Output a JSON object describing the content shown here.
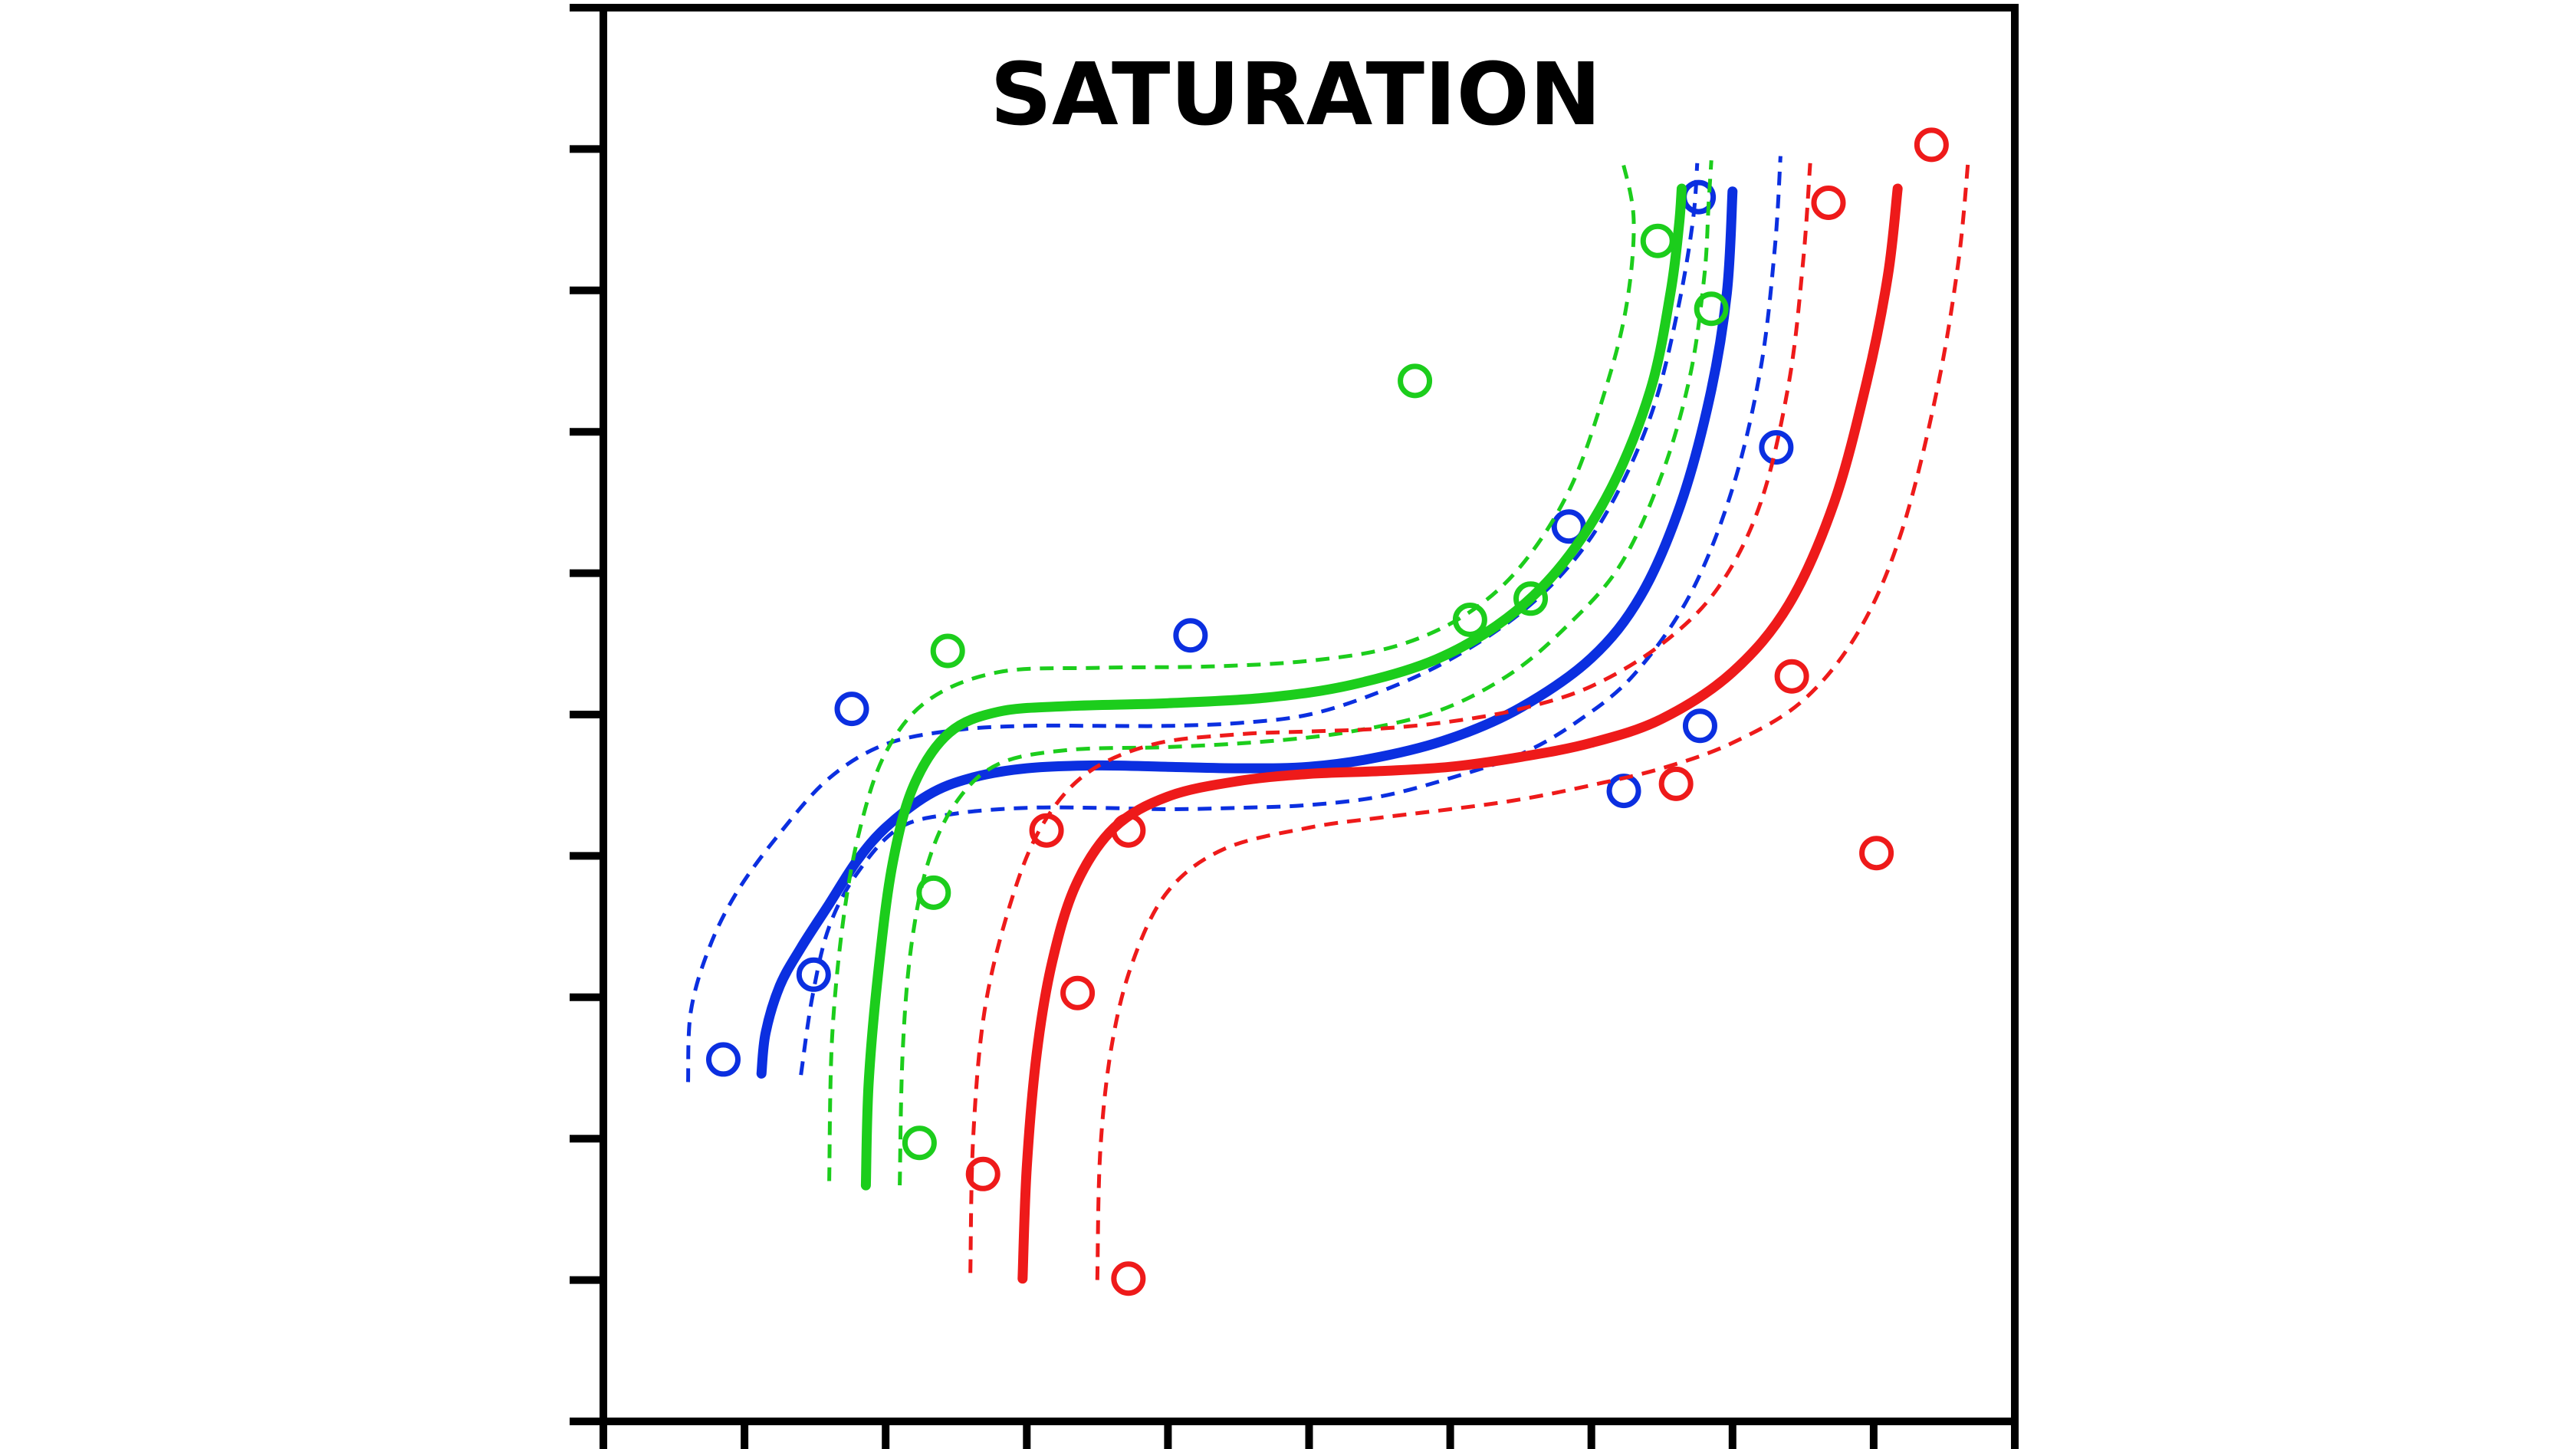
{
  "chart_data": {
    "type": "scatter",
    "title": "SATURATION",
    "xlabel": "",
    "ylabel": "",
    "xlim": [
      0,
      10
    ],
    "ylim": [
      0,
      10
    ],
    "x_tick_count": 11,
    "y_tick_count": 11,
    "x_tick_labels": [],
    "y_tick_labels": [],
    "grid": false,
    "legend": "none",
    "series": [
      {
        "color": "#0b2fe0",
        "points": [
          [
            0.85,
            2.56
          ],
          [
            1.49,
            3.16
          ],
          [
            1.76,
            5.04
          ],
          [
            4.16,
            5.56
          ],
          [
            6.84,
            6.33
          ],
          [
            7.23,
            4.46
          ],
          [
            7.77,
            4.92
          ],
          [
            7.76,
            8.66
          ],
          [
            8.31,
            6.89
          ]
        ],
        "fit": [
          [
            1.12,
            2.46
          ],
          [
            1.15,
            2.75
          ],
          [
            1.25,
            3.08
          ],
          [
            1.4,
            3.35
          ],
          [
            1.6,
            3.66
          ],
          [
            1.8,
            3.97
          ],
          [
            2.0,
            4.2
          ],
          [
            2.3,
            4.43
          ],
          [
            2.6,
            4.55
          ],
          [
            3.0,
            4.62
          ],
          [
            3.5,
            4.64
          ],
          [
            4.0,
            4.63
          ],
          [
            4.5,
            4.62
          ],
          [
            5.0,
            4.63
          ],
          [
            5.5,
            4.7
          ],
          [
            6.0,
            4.83
          ],
          [
            6.5,
            5.05
          ],
          [
            7.0,
            5.4
          ],
          [
            7.35,
            5.84
          ],
          [
            7.63,
            6.48
          ],
          [
            7.84,
            7.25
          ],
          [
            7.96,
            7.98
          ],
          [
            8.0,
            8.7
          ]
        ],
        "ci_upper": [
          [
            0.6,
            2.4
          ],
          [
            0.62,
            2.9
          ],
          [
            0.75,
            3.35
          ],
          [
            0.95,
            3.75
          ],
          [
            1.25,
            4.16
          ],
          [
            1.6,
            4.55
          ],
          [
            2.0,
            4.79
          ],
          [
            2.5,
            4.89
          ],
          [
            3.0,
            4.92
          ],
          [
            3.5,
            4.92
          ],
          [
            4.0,
            4.92
          ],
          [
            4.5,
            4.94
          ],
          [
            5.0,
            5.0
          ],
          [
            5.5,
            5.16
          ],
          [
            6.0,
            5.39
          ],
          [
            6.5,
            5.72
          ],
          [
            6.9,
            6.12
          ],
          [
            7.2,
            6.6
          ],
          [
            7.45,
            7.2
          ],
          [
            7.62,
            7.9
          ],
          [
            7.72,
            8.5
          ],
          [
            7.75,
            8.9
          ]
        ],
        "ci_lower": [
          [
            1.4,
            2.45
          ],
          [
            1.48,
            3.0
          ],
          [
            1.6,
            3.5
          ],
          [
            1.8,
            3.88
          ],
          [
            2.1,
            4.2
          ],
          [
            2.5,
            4.3
          ],
          [
            3.0,
            4.34
          ],
          [
            3.5,
            4.34
          ],
          [
            4.0,
            4.33
          ],
          [
            4.5,
            4.34
          ],
          [
            5.0,
            4.36
          ],
          [
            5.5,
            4.42
          ],
          [
            6.0,
            4.55
          ],
          [
            6.5,
            4.72
          ],
          [
            6.9,
            4.95
          ],
          [
            7.3,
            5.28
          ],
          [
            7.7,
            5.85
          ],
          [
            8.0,
            6.6
          ],
          [
            8.2,
            7.45
          ],
          [
            8.3,
            8.3
          ],
          [
            8.34,
            8.95
          ]
        ]
      },
      {
        "color": "#1ccd1c",
        "points": [
          [
            2.44,
            5.45
          ],
          [
            2.34,
            3.74
          ],
          [
            2.24,
            1.97
          ],
          [
            5.75,
            7.36
          ],
          [
            6.14,
            5.67
          ],
          [
            6.57,
            5.82
          ],
          [
            7.47,
            8.35
          ],
          [
            7.85,
            7.87
          ]
        ],
        "fit": [
          [
            1.86,
            1.67
          ],
          [
            1.88,
            2.4
          ],
          [
            1.95,
            3.2
          ],
          [
            2.05,
            3.95
          ],
          [
            2.2,
            4.5
          ],
          [
            2.45,
            4.87
          ],
          [
            2.8,
            5.02
          ],
          [
            3.3,
            5.06
          ],
          [
            4.0,
            5.08
          ],
          [
            4.7,
            5.12
          ],
          [
            5.3,
            5.21
          ],
          [
            5.9,
            5.39
          ],
          [
            6.4,
            5.68
          ],
          [
            6.8,
            6.07
          ],
          [
            7.15,
            6.62
          ],
          [
            7.42,
            7.3
          ],
          [
            7.56,
            7.98
          ],
          [
            7.62,
            8.45
          ],
          [
            7.64,
            8.72
          ]
        ],
        "ci_upper": [
          [
            1.6,
            1.7
          ],
          [
            1.62,
            2.7
          ],
          [
            1.7,
            3.55
          ],
          [
            1.82,
            4.2
          ],
          [
            2.0,
            4.73
          ],
          [
            2.3,
            5.1
          ],
          [
            2.8,
            5.3
          ],
          [
            3.5,
            5.33
          ],
          [
            4.3,
            5.34
          ],
          [
            5.0,
            5.38
          ],
          [
            5.6,
            5.48
          ],
          [
            6.1,
            5.7
          ],
          [
            6.5,
            6.05
          ],
          [
            6.85,
            6.6
          ],
          [
            7.1,
            7.3
          ],
          [
            7.25,
            7.9
          ],
          [
            7.3,
            8.5
          ],
          [
            7.22,
            8.92
          ]
        ],
        "ci_lower": [
          [
            2.1,
            1.67
          ],
          [
            2.12,
            2.6
          ],
          [
            2.18,
            3.35
          ],
          [
            2.3,
            3.95
          ],
          [
            2.5,
            4.38
          ],
          [
            2.8,
            4.65
          ],
          [
            3.3,
            4.75
          ],
          [
            4.0,
            4.77
          ],
          [
            4.7,
            4.81
          ],
          [
            5.3,
            4.88
          ],
          [
            5.9,
            5.02
          ],
          [
            6.4,
            5.27
          ],
          [
            6.8,
            5.6
          ],
          [
            7.2,
            6.05
          ],
          [
            7.5,
            6.7
          ],
          [
            7.7,
            7.4
          ],
          [
            7.8,
            8.1
          ],
          [
            7.83,
            8.6
          ],
          [
            7.85,
            8.92
          ]
        ]
      },
      {
        "color": "#ee1a1a",
        "points": [
          [
            2.69,
            1.75
          ],
          [
            3.14,
            4.18
          ],
          [
            3.36,
            3.03
          ],
          [
            3.72,
            4.18
          ],
          [
            3.72,
            1.01
          ],
          [
            7.6,
            4.51
          ],
          [
            8.42,
            5.27
          ],
          [
            8.68,
            8.62
          ],
          [
            9.02,
            4.02
          ],
          [
            9.41,
            9.03
          ]
        ],
        "fit": [
          [
            2.97,
            1.01
          ],
          [
            3.0,
            1.8
          ],
          [
            3.07,
            2.6
          ],
          [
            3.18,
            3.25
          ],
          [
            3.35,
            3.8
          ],
          [
            3.62,
            4.2
          ],
          [
            4.0,
            4.42
          ],
          [
            4.5,
            4.53
          ],
          [
            5.0,
            4.58
          ],
          [
            5.5,
            4.6
          ],
          [
            6.0,
            4.63
          ],
          [
            6.5,
            4.7
          ],
          [
            7.0,
            4.8
          ],
          [
            7.5,
            4.97
          ],
          [
            8.0,
            5.3
          ],
          [
            8.4,
            5.78
          ],
          [
            8.72,
            6.5
          ],
          [
            8.95,
            7.35
          ],
          [
            9.1,
            8.1
          ],
          [
            9.17,
            8.72
          ]
        ],
        "ci_upper": [
          [
            2.6,
            1.05
          ],
          [
            2.62,
            2.0
          ],
          [
            2.7,
            2.9
          ],
          [
            2.88,
            3.65
          ],
          [
            3.1,
            4.2
          ],
          [
            3.42,
            4.58
          ],
          [
            3.9,
            4.79
          ],
          [
            4.5,
            4.86
          ],
          [
            5.0,
            4.88
          ],
          [
            5.5,
            4.9
          ],
          [
            6.0,
            4.95
          ],
          [
            6.5,
            5.04
          ],
          [
            7.0,
            5.2
          ],
          [
            7.5,
            5.5
          ],
          [
            7.9,
            5.9
          ],
          [
            8.2,
            6.5
          ],
          [
            8.4,
            7.35
          ],
          [
            8.5,
            8.2
          ],
          [
            8.55,
            8.9
          ]
        ],
        "ci_lower": [
          [
            3.5,
            1.0
          ],
          [
            3.52,
            1.9
          ],
          [
            3.6,
            2.65
          ],
          [
            3.75,
            3.25
          ],
          [
            4.0,
            3.75
          ],
          [
            4.4,
            4.05
          ],
          [
            5.0,
            4.2
          ],
          [
            5.5,
            4.27
          ],
          [
            6.0,
            4.33
          ],
          [
            6.5,
            4.4
          ],
          [
            7.0,
            4.5
          ],
          [
            7.5,
            4.62
          ],
          [
            8.0,
            4.8
          ],
          [
            8.5,
            5.1
          ],
          [
            8.9,
            5.6
          ],
          [
            9.2,
            6.3
          ],
          [
            9.45,
            7.3
          ],
          [
            9.6,
            8.2
          ],
          [
            9.67,
            8.92
          ]
        ]
      }
    ]
  }
}
